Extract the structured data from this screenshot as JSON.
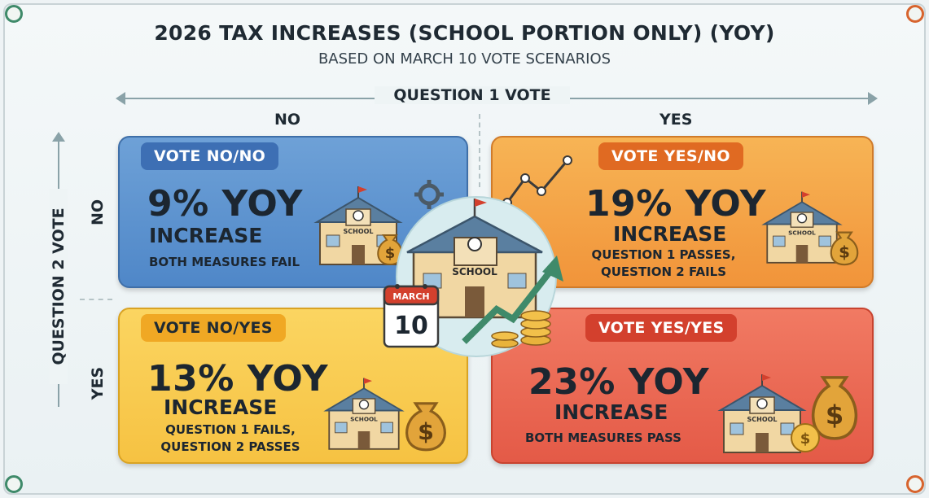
{
  "header": {
    "title": "2026 TAX INCREASES (SCHOOL PORTION ONLY) (YOY)",
    "subtitle": "BASED ON MARCH 10 VOTE SCENARIOS"
  },
  "axes": {
    "question1": {
      "label": "QUESTION 1 VOTE",
      "columns": [
        "NO",
        "YES"
      ]
    },
    "question2": {
      "label": "QUESTION 2 VOTE",
      "rows": [
        "NO",
        "YES"
      ]
    }
  },
  "scenarios": {
    "no_no": {
      "tag": "VOTE NO/NO",
      "percent": "9% YOY",
      "increase": "INCREASE",
      "desc1": "BOTH MEASURES FAIL",
      "desc2": "",
      "color": "#4f87c8"
    },
    "yes_no": {
      "tag": "VOTE YES/NO",
      "percent": "19% YOY",
      "increase": "INCREASE",
      "desc1": "QUESTION 1 PASSES,",
      "desc2": "QUESTION 2 FAILS",
      "color": "#f1943a"
    },
    "no_yes": {
      "tag": "VOTE NO/YES",
      "percent": "13% YOY",
      "increase": "INCREASE",
      "desc1": "QUESTION 1 FAILS,",
      "desc2": "QUESTION 2 PASSES",
      "color": "#f6c242"
    },
    "yes_yes": {
      "tag": "VOTE YES/YES",
      "percent": "23% YOY",
      "increase": "INCREASE",
      "desc1": "BOTH MEASURES PASS",
      "desc2": "",
      "color": "#e45a47"
    }
  },
  "center": {
    "school_sign": "SCHOOL",
    "calendar_month": "MARCH",
    "calendar_day": "10"
  },
  "icons": {
    "school_sign": "SCHOOL",
    "dollar": "$"
  }
}
